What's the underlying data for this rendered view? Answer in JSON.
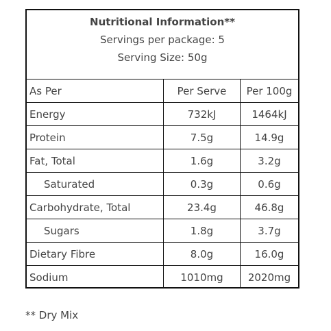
{
  "header": {
    "title": "Nutritional Information**",
    "lines": [
      "Servings per package: 5",
      "Serving Size: 50g"
    ]
  },
  "table": {
    "rows": [
      [
        "As Per",
        "Per Serve",
        "Per 100g"
      ],
      [
        "Energy",
        "732kJ",
        "1464kJ"
      ],
      [
        "Protein",
        "7.5g",
        "14.9g"
      ],
      [
        "Fat, Total",
        "1.6g",
        "3.2g"
      ],
      [
        "Saturated",
        "0.3g",
        "0.6g"
      ],
      [
        "Carbohydrate, Total",
        "23.4g",
        "46.8g"
      ],
      [
        "Sugars",
        "1.8g",
        "3.7g"
      ],
      [
        "Dietary Fibre",
        "8.0g",
        "16.0g"
      ],
      [
        "Sodium",
        "1010mg",
        "2020mg"
      ]
    ]
  },
  "footnote": "** Dry Mix"
}
